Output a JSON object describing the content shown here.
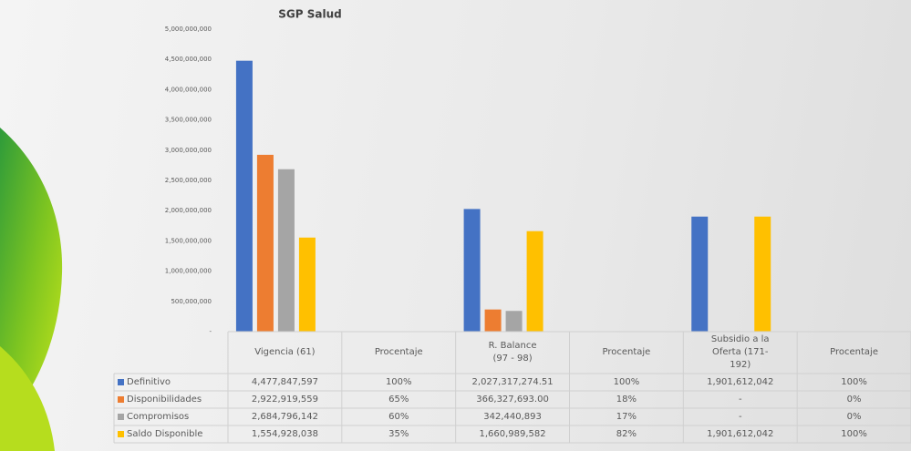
{
  "chart_data": {
    "type": "bar",
    "title": "SGP Salud",
    "categories": [
      "Vigencia (61)",
      "Procentaje",
      "R. Balance (97 - 98)",
      "Procentaje",
      "Subsidio a la Oferta (171-192)",
      "Procentaje"
    ],
    "series": [
      {
        "name": "Definitivo",
        "color": "#4472c4",
        "values": [
          4477847597,
          1,
          2027317274.51,
          1,
          1901612042,
          1
        ],
        "value_labels": [
          "4,477,847,597",
          "100%",
          "2,027,317,274.51",
          "100%",
          "1,901,612,042",
          "100%"
        ]
      },
      {
        "name": "Disponibilidades",
        "color": "#ed7d31",
        "values": [
          2922919559,
          0.65,
          366327693,
          0.18,
          0,
          0
        ],
        "value_labels": [
          "2,922,919,559",
          "65%",
          "366,327,693.00",
          "18%",
          "-",
          "0%"
        ]
      },
      {
        "name": "Compromisos",
        "color": "#a5a5a5",
        "values": [
          2684796142,
          0.6,
          342440893,
          0.17,
          0,
          0
        ],
        "value_labels": [
          "2,684,796,142",
          "60%",
          "342,440,893",
          "17%",
          "-",
          "0%"
        ]
      },
      {
        "name": "Saldo Disponible",
        "color": "#ffc000",
        "values": [
          1554928038,
          0.35,
          1660989582,
          0.82,
          1901612042,
          1
        ],
        "value_labels": [
          "1,554,928,038",
          "35%",
          "1,660,989,582",
          "82%",
          "1,901,612,042",
          "100%"
        ]
      }
    ],
    "ylim": [
      0,
      5000000000
    ],
    "yticks": [
      {
        "value": 0,
        "label": "-"
      },
      {
        "value": 500000000,
        "label": "500,000,000"
      },
      {
        "value": 1000000000,
        "label": "1,000,000,000"
      },
      {
        "value": 1500000000,
        "label": "1,500,000,000"
      },
      {
        "value": 2000000000,
        "label": "2,000,000,000"
      },
      {
        "value": 2500000000,
        "label": "2,500,000,000"
      },
      {
        "value": 3000000000,
        "label": "3,000,000,000"
      },
      {
        "value": 3500000000,
        "label": "3,500,000,000"
      },
      {
        "value": 4000000000,
        "label": "4,000,000,000"
      },
      {
        "value": 4500000000,
        "label": "4,500,000,000"
      },
      {
        "value": 5000000000,
        "label": "5,000,000,000"
      }
    ],
    "grid": false
  }
}
